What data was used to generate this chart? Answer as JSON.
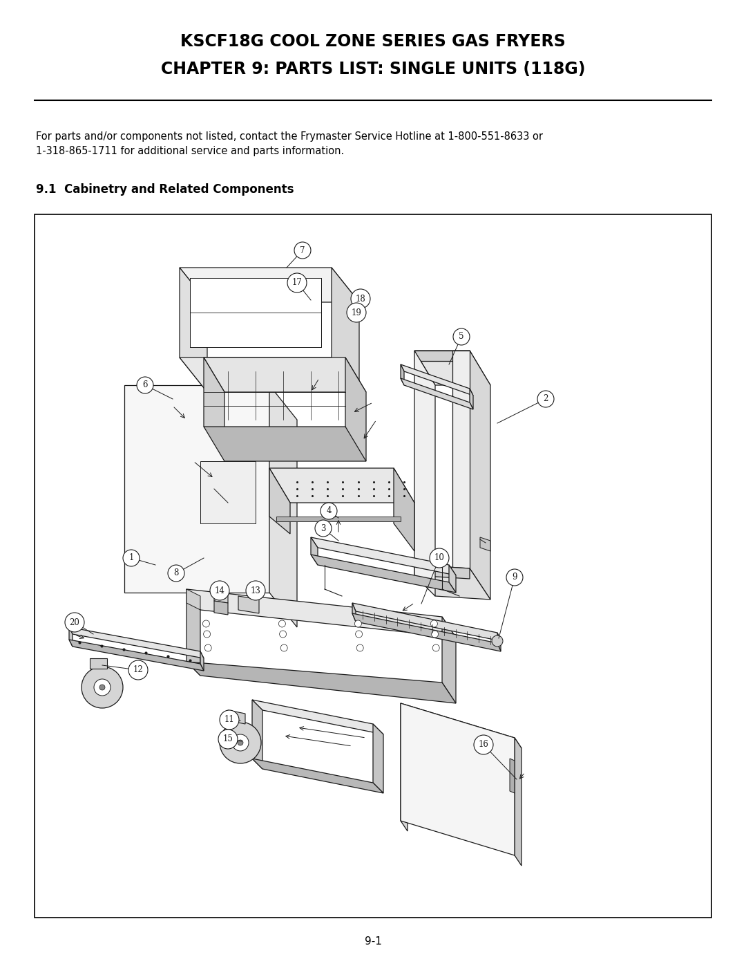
{
  "title_line1": "KSCF18G COOL ZONE SERIES GAS FRYERS",
  "title_line2": "CHAPTER 9: PARTS LIST: SINGLE UNITS (118G)",
  "body_text": "For parts and/or components not listed, contact the Frymaster Service Hotline at 1-800-551-8633 or\n1-318-865-1711 for additional service and parts information.",
  "section_heading": "9.1  Cabinetry and Related Components",
  "page_number": "9-1",
  "background_color": "#ffffff",
  "text_color": "#000000",
  "title_fontsize": 17,
  "body_fontsize": 10.5,
  "heading_fontsize": 12,
  "page_num_fontsize": 11
}
